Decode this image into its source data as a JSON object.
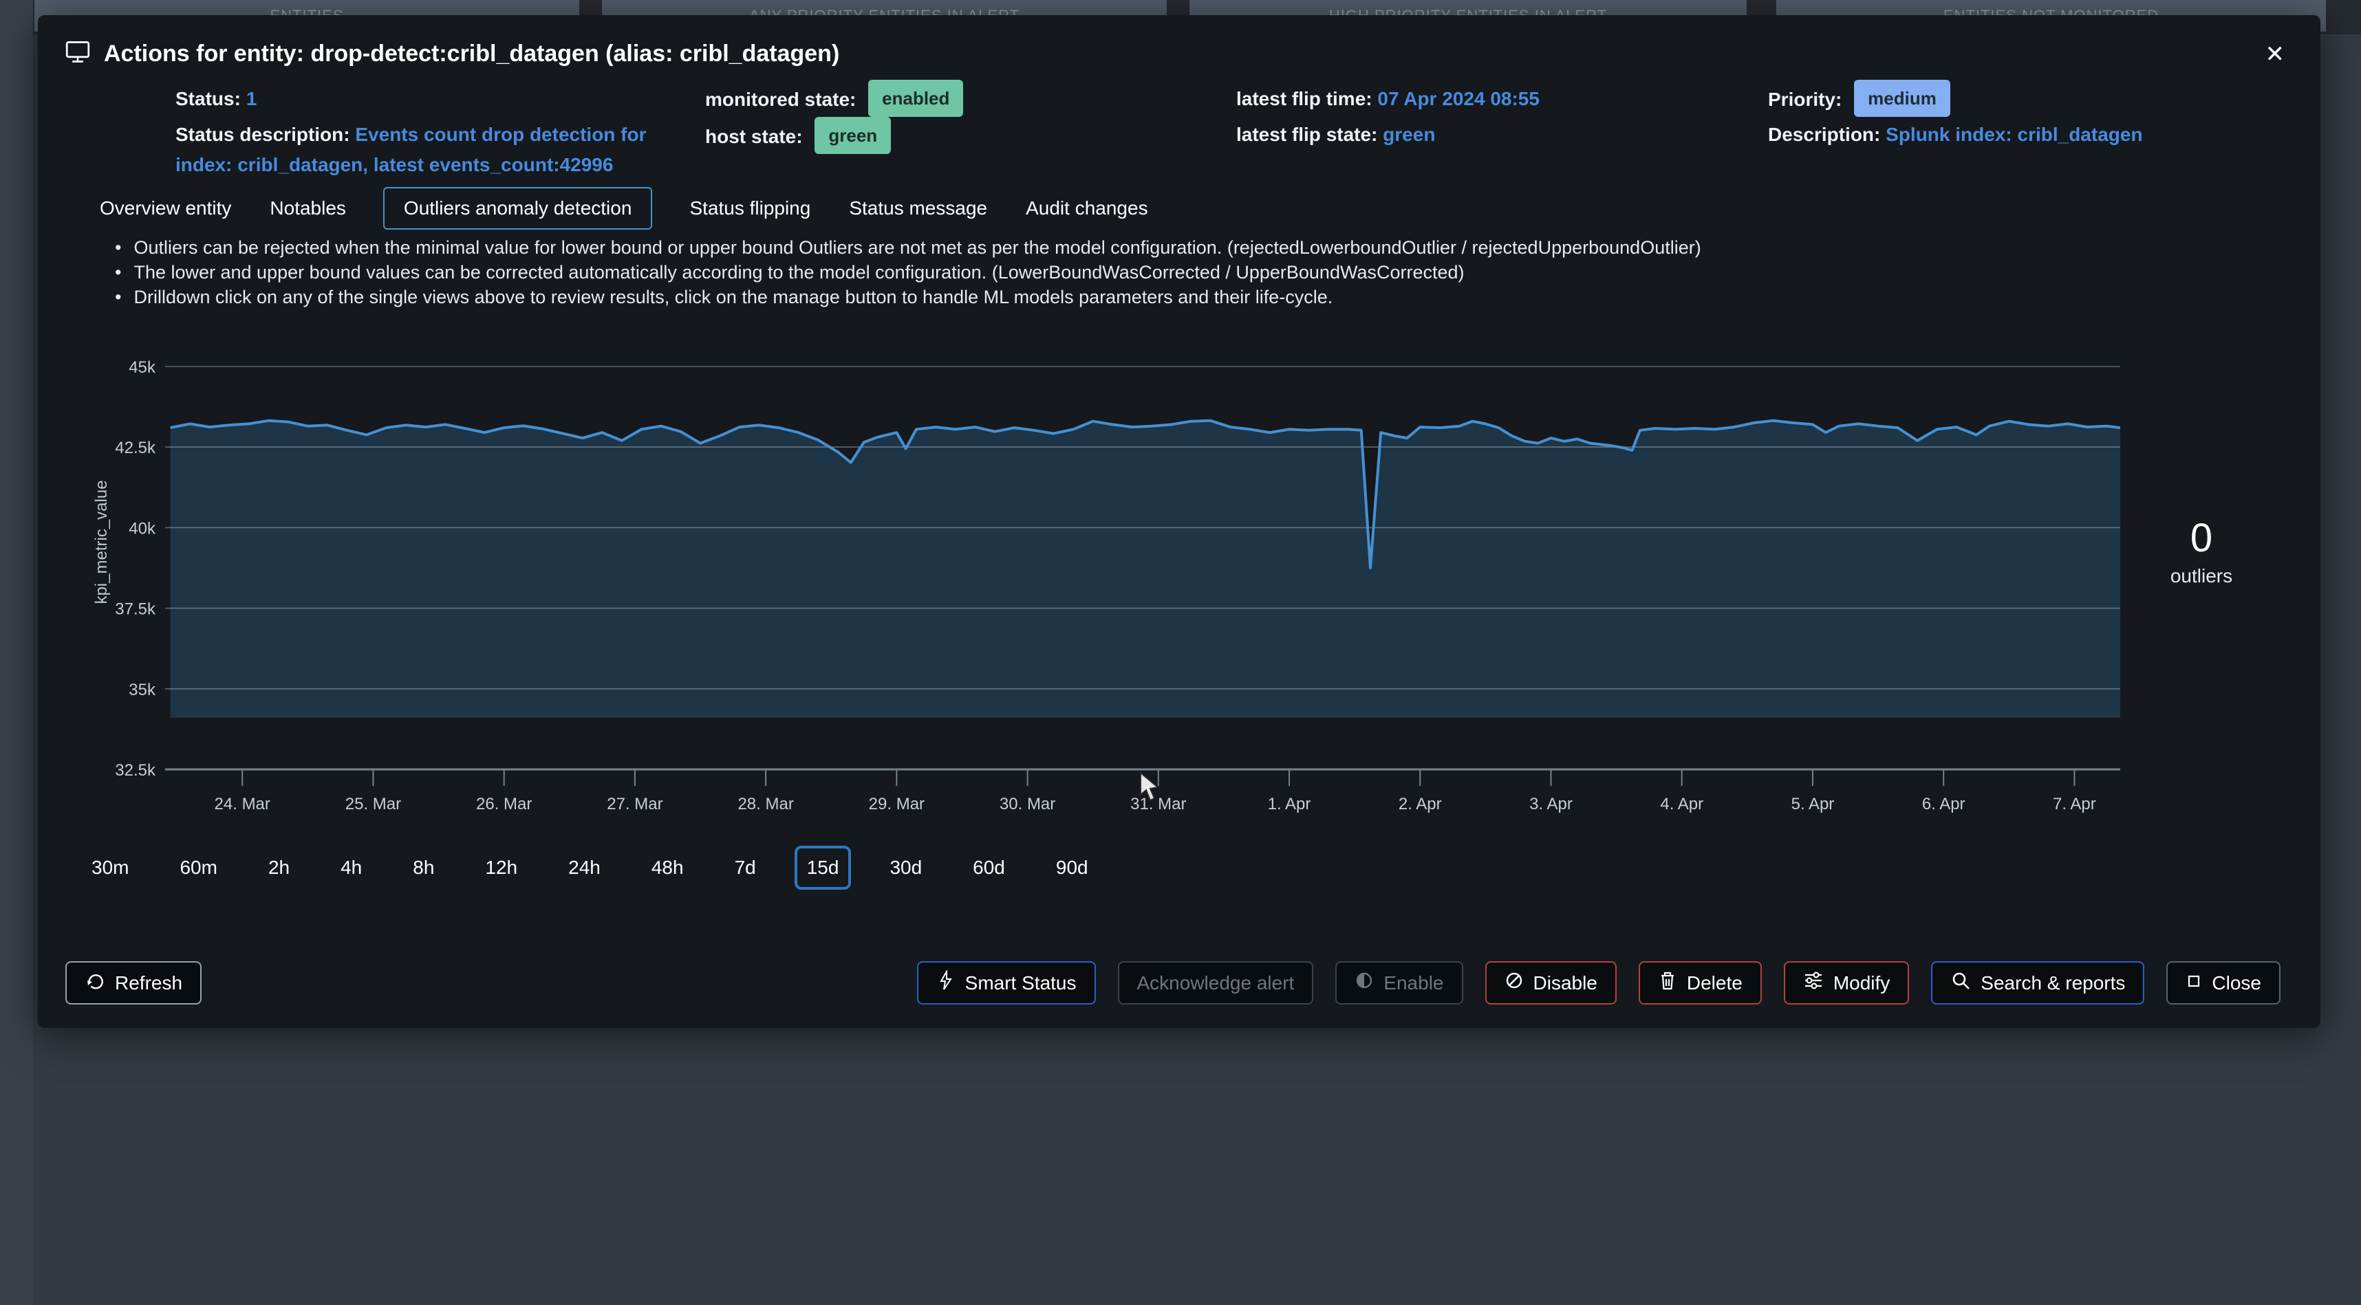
{
  "background": {
    "panels": [
      "ENTITIES",
      "ANY PRIORITY ENTITIES IN ALERT",
      "HIGH PRIORITY ENTITIES IN ALERT",
      "ENTITIES NOT MONITORED"
    ]
  },
  "modal": {
    "title": "Actions for entity: drop-detect:cribl_datagen (alias: cribl_datagen)",
    "title_icon": "monitor-icon",
    "close_glyph": "✕",
    "info": {
      "status_label": "Status:",
      "status_value": "1",
      "monitored_state_label": "monitored state:",
      "monitored_state_value": "enabled",
      "latest_flip_time_label": "latest flip time:",
      "latest_flip_time_value": "07 Apr 2024 08:55",
      "priority_label": "Priority:",
      "priority_value": "medium",
      "status_description_label": "Status description:",
      "status_description_value": "Events count drop detection for index: cribl_datagen, latest events_count:42996",
      "host_state_label": "host state:",
      "host_state_value": "green",
      "latest_flip_state_label": "latest flip state:",
      "latest_flip_state_value": "green",
      "description_label": "Description:",
      "description_value": "Splunk index: cribl_datagen"
    },
    "tabs": [
      {
        "label": "Overview entity",
        "selected": false
      },
      {
        "label": "Notables",
        "selected": false
      },
      {
        "label": "Outliers anomaly detection",
        "selected": true
      },
      {
        "label": "Status flipping",
        "selected": false
      },
      {
        "label": "Status message",
        "selected": false
      },
      {
        "label": "Audit changes",
        "selected": false
      }
    ],
    "notes": [
      "Outliers can be rejected when the minimal value for lower bound or upper bound Outliers are not met as per the model configuration. (rejectedLowerboundOutlier / rejectedUpperboundOutlier)",
      "The lower and upper bound values can be corrected automatically according to the model configuration. (LowerBoundWasCorrected / UpperBoundWasCorrected)",
      "Drilldown click on any of the single views above to review results, click on the manage button to handle ML models parameters and their life-cycle."
    ],
    "time_ranges": [
      "30m",
      "60m",
      "2h",
      "4h",
      "8h",
      "12h",
      "24h",
      "48h",
      "7d",
      "15d",
      "30d",
      "60d",
      "90d"
    ],
    "selected_time_range": "15d",
    "footer": {
      "refresh_label": "Refresh",
      "actions": [
        {
          "label": "Smart Status",
          "icon": "bolt-icon",
          "style": "blue",
          "disabled": false
        },
        {
          "label": "Acknowledge alert",
          "icon": "",
          "style": "gray",
          "disabled": true
        },
        {
          "label": "Enable",
          "icon": "toggle-half-icon",
          "style": "gray",
          "disabled": true
        },
        {
          "label": "Disable",
          "icon": "slash-circle-icon",
          "style": "red",
          "disabled": false
        },
        {
          "label": "Delete",
          "icon": "trash-icon",
          "style": "red",
          "disabled": false
        },
        {
          "label": "Modify",
          "icon": "sliders-icon",
          "style": "red",
          "disabled": false
        },
        {
          "label": "Search & reports",
          "icon": "magnifier-icon",
          "style": "blue",
          "disabled": false
        },
        {
          "label": "Close",
          "icon": "square-icon",
          "style": "gray",
          "disabled": false
        }
      ]
    }
  },
  "chart_data": {
    "type": "line",
    "title": "",
    "ylabel": "kpi_metric_value",
    "unit": "thousands",
    "ylim": [
      32.5,
      45
    ],
    "grid": true,
    "legend": "none",
    "y_ticks": [
      {
        "label": "45k",
        "value": 45
      },
      {
        "label": "42.5k",
        "value": 42.5
      },
      {
        "label": "40k",
        "value": 40
      },
      {
        "label": "37.5k",
        "value": 37.5
      },
      {
        "label": "35k",
        "value": 35
      },
      {
        "label": "32.5k",
        "value": 32.5
      }
    ],
    "x_ticks": [
      "24. Mar",
      "25. Mar",
      "26. Mar",
      "27. Mar",
      "28. Mar",
      "29. Mar",
      "30. Mar",
      "31. Mar",
      "1. Apr",
      "2. Apr",
      "3. Apr",
      "4. Apr",
      "5. Apr",
      "6. Apr",
      "7. Apr"
    ],
    "x_domain_days": [
      -0.59,
      14.35
    ],
    "band_lower": 34.1,
    "outliers_count": 0,
    "outliers_label": "outliers",
    "series": [
      {
        "name": "kpi_metric_value",
        "points": [
          [
            -0.55,
            43.1
          ],
          [
            -0.4,
            43.22
          ],
          [
            -0.25,
            43.12
          ],
          [
            -0.1,
            43.18
          ],
          [
            0.05,
            43.22
          ],
          [
            0.2,
            43.32
          ],
          [
            0.35,
            43.28
          ],
          [
            0.5,
            43.15
          ],
          [
            0.65,
            43.18
          ],
          [
            0.8,
            43.02
          ],
          [
            0.95,
            42.88
          ],
          [
            1.1,
            43.1
          ],
          [
            1.25,
            43.18
          ],
          [
            1.4,
            43.12
          ],
          [
            1.55,
            43.2
          ],
          [
            1.7,
            43.08
          ],
          [
            1.85,
            42.95
          ],
          [
            2,
            43.1
          ],
          [
            2.15,
            43.16
          ],
          [
            2.3,
            43.06
          ],
          [
            2.45,
            42.92
          ],
          [
            2.6,
            42.78
          ],
          [
            2.75,
            42.95
          ],
          [
            2.9,
            42.7
          ],
          [
            3.05,
            43.05
          ],
          [
            3.2,
            43.15
          ],
          [
            3.35,
            42.98
          ],
          [
            3.5,
            42.62
          ],
          [
            3.65,
            42.85
          ],
          [
            3.8,
            43.12
          ],
          [
            3.95,
            43.18
          ],
          [
            4.1,
            43.1
          ],
          [
            4.25,
            42.95
          ],
          [
            4.4,
            42.72
          ],
          [
            4.55,
            42.35
          ],
          [
            4.65,
            42.02
          ],
          [
            4.75,
            42.65
          ],
          [
            4.85,
            42.8
          ],
          [
            5,
            42.95
          ],
          [
            5.07,
            42.45
          ],
          [
            5.15,
            43.05
          ],
          [
            5.3,
            43.12
          ],
          [
            5.45,
            43.05
          ],
          [
            5.6,
            43.12
          ],
          [
            5.75,
            42.98
          ],
          [
            5.9,
            43.1
          ],
          [
            6.05,
            43.02
          ],
          [
            6.2,
            42.92
          ],
          [
            6.35,
            43.05
          ],
          [
            6.5,
            43.3
          ],
          [
            6.65,
            43.2
          ],
          [
            6.8,
            43.12
          ],
          [
            6.95,
            43.15
          ],
          [
            7.1,
            43.2
          ],
          [
            7.25,
            43.3
          ],
          [
            7.4,
            43.32
          ],
          [
            7.55,
            43.12
          ],
          [
            7.7,
            43.05
          ],
          [
            7.85,
            42.95
          ],
          [
            8,
            43.05
          ],
          [
            8.15,
            43.02
          ],
          [
            8.3,
            43.05
          ],
          [
            8.45,
            43.05
          ],
          [
            8.55,
            43.02
          ],
          [
            8.62,
            38.75
          ],
          [
            8.7,
            42.95
          ],
          [
            8.8,
            42.85
          ],
          [
            8.9,
            42.78
          ],
          [
            9,
            43.12
          ],
          [
            9.15,
            43.1
          ],
          [
            9.3,
            43.15
          ],
          [
            9.4,
            43.3
          ],
          [
            9.5,
            43.22
          ],
          [
            9.6,
            43.1
          ],
          [
            9.7,
            42.85
          ],
          [
            9.8,
            42.68
          ],
          [
            9.9,
            42.62
          ],
          [
            10,
            42.78
          ],
          [
            10.1,
            42.68
          ],
          [
            10.2,
            42.75
          ],
          [
            10.3,
            42.62
          ],
          [
            10.45,
            42.55
          ],
          [
            10.55,
            42.48
          ],
          [
            10.62,
            42.4
          ],
          [
            10.68,
            43.02
          ],
          [
            10.8,
            43.08
          ],
          [
            10.95,
            43.05
          ],
          [
            11.1,
            43.08
          ],
          [
            11.25,
            43.05
          ],
          [
            11.4,
            43.12
          ],
          [
            11.55,
            43.25
          ],
          [
            11.7,
            43.32
          ],
          [
            11.85,
            43.25
          ],
          [
            12,
            43.2
          ],
          [
            12.1,
            42.95
          ],
          [
            12.2,
            43.15
          ],
          [
            12.35,
            43.22
          ],
          [
            12.5,
            43.15
          ],
          [
            12.65,
            43.1
          ],
          [
            12.8,
            42.7
          ],
          [
            12.95,
            43.05
          ],
          [
            13.1,
            43.12
          ],
          [
            13.25,
            42.88
          ],
          [
            13.35,
            43.15
          ],
          [
            13.5,
            43.3
          ],
          [
            13.65,
            43.2
          ],
          [
            13.8,
            43.15
          ],
          [
            13.95,
            43.22
          ],
          [
            14.1,
            43.12
          ],
          [
            14.25,
            43.15
          ],
          [
            14.35,
            43.1
          ]
        ]
      }
    ]
  },
  "colors": {
    "accent_blue": "#4a90d2",
    "link_blue": "#478be0",
    "badge_teal": "#6fc6a4",
    "badge_blue": "#84aff2",
    "chart_line": "#4590d2",
    "chart_fill": "#1e3447",
    "gridline": "rgba(170,180,190,0.5)",
    "axis_line": "#78828c",
    "danger_red": "#b2423f"
  }
}
